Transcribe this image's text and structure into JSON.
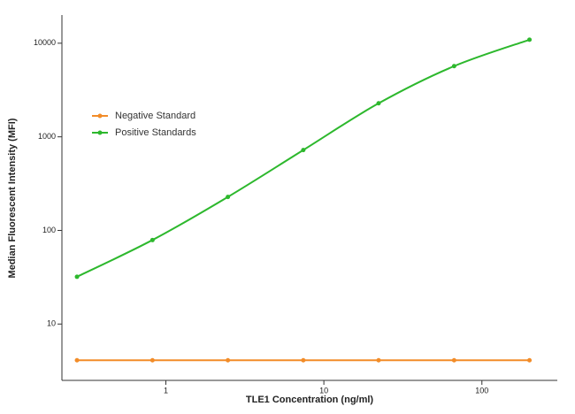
{
  "chart_data": {
    "type": "line",
    "xlabel": "TLE1 Concentration (ng/ml)",
    "ylabel": "Median Fluorescent Intensity (MFI)",
    "xlog": true,
    "ylog": true,
    "xlim": [
      0.22,
      300
    ],
    "ylim": [
      2.5,
      20000
    ],
    "xticks": [
      1,
      10,
      100
    ],
    "yticks": [
      10,
      100,
      1000,
      10000
    ],
    "x": [
      0.274,
      0.823,
      2.47,
      7.41,
      22.2,
      66.7,
      200
    ],
    "legend": "upper left",
    "series": [
      {
        "name": "Negative Standard",
        "color": "#f28c28",
        "values": [
          4.1,
          4.1,
          4.1,
          4.1,
          4.1,
          4.1,
          4.1
        ]
      },
      {
        "name": "Positive Standards",
        "color": "#2db82d",
        "values": [
          32,
          79,
          228,
          722,
          2280,
          5690,
          10900
        ]
      }
    ]
  }
}
